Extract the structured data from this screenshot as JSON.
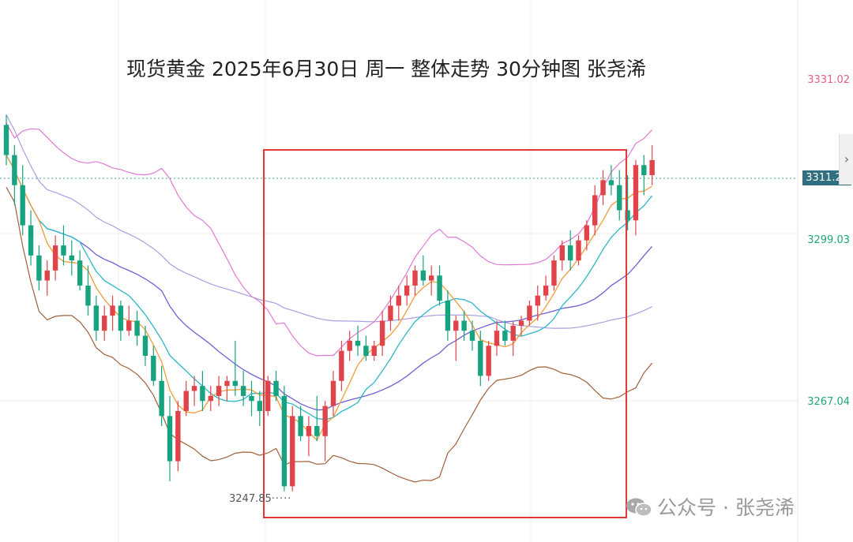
{
  "title": "现货黄金 2025年6月30日 周一 整体走势 30分钟图 张尧浠",
  "price_axis": {
    "top_label": "3331.02",
    "mid_label": "3299.03",
    "bottom_label": "3267.04",
    "current": "3311.21"
  },
  "low_marker": "3247.85",
  "watermark": "公众号 · 张尧浠",
  "colors": {
    "up": "#e0444a",
    "down": "#17a37f",
    "ma_fast": "#f29b38",
    "ma_mid": "#2bb9c6",
    "ma_slow": "#6b63d6",
    "boll_upper": "#e07ad4",
    "boll_lower": "#a0603a",
    "ma_long": "#a8a0e0",
    "highlight_box": "#e53935",
    "top_label": "#e0608a",
    "side_label": "#1fa67a"
  },
  "chart_data": {
    "type": "candlestick",
    "title": "现货黄金 2025年6月30日 周一 整体走势 30分钟图 张尧浠",
    "interval": "30分钟",
    "y_labels": [
      3331.02,
      3299.03,
      3267.04
    ],
    "current_price": 3311.21,
    "session_low": 3247.85,
    "candles": [
      [
        3322,
        3324,
        3314,
        3316
      ],
      [
        3316,
        3318,
        3306,
        3310
      ],
      [
        3310,
        3314,
        3300,
        3302
      ],
      [
        3302,
        3305,
        3294,
        3296
      ],
      [
        3296,
        3298,
        3289,
        3291
      ],
      [
        3291,
        3295,
        3288,
        3293
      ],
      [
        3293,
        3300,
        3291,
        3298
      ],
      [
        3298,
        3302,
        3294,
        3296
      ],
      [
        3296,
        3299,
        3292,
        3295
      ],
      [
        3295,
        3297,
        3289,
        3290
      ],
      [
        3290,
        3294,
        3284,
        3286
      ],
      [
        3286,
        3288,
        3279,
        3281
      ],
      [
        3281,
        3286,
        3279,
        3284
      ],
      [
        3284,
        3288,
        3281,
        3286
      ],
      [
        3286,
        3287,
        3279,
        3281
      ],
      [
        3281,
        3286,
        3280,
        3283
      ],
      [
        3283,
        3285,
        3278,
        3280
      ],
      [
        3280,
        3282,
        3274,
        3276
      ],
      [
        3276,
        3278,
        3270,
        3271
      ],
      [
        3271,
        3274,
        3262,
        3264
      ],
      [
        3264,
        3268,
        3251,
        3255
      ],
      [
        3255,
        3267,
        3253,
        3265
      ],
      [
        3265,
        3271,
        3264,
        3269
      ],
      [
        3269,
        3272,
        3266,
        3270
      ],
      [
        3270,
        3273,
        3265,
        3267
      ],
      [
        3267,
        3270,
        3265,
        3268
      ],
      [
        3268,
        3272,
        3266,
        3270
      ],
      [
        3270,
        3272,
        3267,
        3271
      ],
      [
        3271,
        3279,
        3268,
        3270
      ],
      [
        3270,
        3273,
        3266,
        3268
      ],
      [
        3268,
        3271,
        3264,
        3267
      ],
      [
        3267,
        3269,
        3262,
        3265
      ],
      [
        3265,
        3272,
        3264,
        3271
      ],
      [
        3271,
        3273,
        3267,
        3268
      ],
      [
        3268,
        3270,
        3249,
        3250
      ],
      [
        3250,
        3266,
        3249,
        3264
      ],
      [
        3264,
        3266,
        3259,
        3260
      ],
      [
        3260,
        3264,
        3256,
        3262
      ],
      [
        3262,
        3268,
        3259,
        3260
      ],
      [
        3260,
        3267,
        3255,
        3266
      ],
      [
        3266,
        3273,
        3264,
        3271
      ],
      [
        3271,
        3279,
        3269,
        3277
      ],
      [
        3277,
        3281,
        3275,
        3279
      ],
      [
        3279,
        3282,
        3276,
        3278
      ],
      [
        3278,
        3280,
        3275,
        3276
      ],
      [
        3276,
        3279,
        3275,
        3278
      ],
      [
        3278,
        3285,
        3276,
        3283
      ],
      [
        3283,
        3288,
        3281,
        3286
      ],
      [
        3286,
        3290,
        3283,
        3288
      ],
      [
        3288,
        3292,
        3286,
        3290
      ],
      [
        3290,
        3294,
        3288,
        3293
      ],
      [
        3293,
        3296,
        3290,
        3291
      ],
      [
        3291,
        3294,
        3288,
        3292
      ],
      [
        3292,
        3294,
        3286,
        3287
      ],
      [
        3287,
        3289,
        3279,
        3281
      ],
      [
        3281,
        3284,
        3275,
        3283
      ],
      [
        3283,
        3285,
        3279,
        3281
      ],
      [
        3281,
        3283,
        3277,
        3279
      ],
      [
        3279,
        3281,
        3270,
        3272
      ],
      [
        3272,
        3279,
        3271,
        3278
      ],
      [
        3278,
        3283,
        3276,
        3281
      ],
      [
        3281,
        3283,
        3278,
        3279
      ],
      [
        3279,
        3283,
        3276,
        3282
      ],
      [
        3282,
        3284,
        3280,
        3283
      ],
      [
        3283,
        3287,
        3282,
        3286
      ],
      [
        3286,
        3290,
        3283,
        3288
      ],
      [
        3288,
        3292,
        3287,
        3290
      ],
      [
        3290,
        3296,
        3289,
        3295
      ],
      [
        3295,
        3299,
        3293,
        3298
      ],
      [
        3298,
        3301,
        3293,
        3295
      ],
      [
        3295,
        3300,
        3294,
        3299
      ],
      [
        3299,
        3303,
        3297,
        3302
      ],
      [
        3302,
        3310,
        3300,
        3308
      ],
      [
        3308,
        3313,
        3306,
        3311
      ],
      [
        3311,
        3314,
        3308,
        3310
      ],
      [
        3310,
        3313,
        3303,
        3305
      ],
      [
        3305,
        3312,
        3301,
        3303
      ],
      [
        3303,
        3315,
        3300,
        3314
      ],
      [
        3314,
        3316,
        3308,
        3312
      ],
      [
        3312,
        3318,
        3310,
        3315
      ]
    ],
    "highlight_range": [
      34,
      78
    ]
  }
}
